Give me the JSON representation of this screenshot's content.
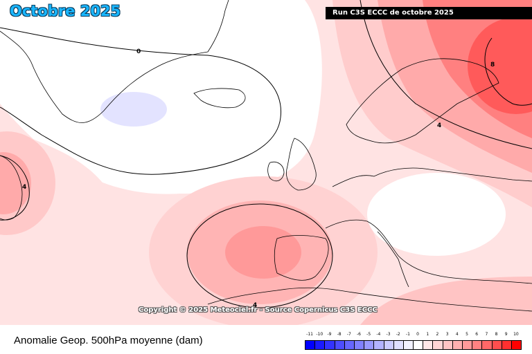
{
  "header": {
    "title": "Octobre 2025",
    "run_label": "Run C3S ECCC de octobre 2025"
  },
  "map": {
    "copyright": "Copyright © 2025 Meteociel.fr - Source Copernicus C3S ECCC",
    "contour_labels": [
      "0",
      "4",
      "8",
      "4",
      "4"
    ]
  },
  "footer": {
    "title": "Anomalie Geop. 500hPa moyenne (dam)"
  },
  "legend": {
    "labels": [
      "-11",
      "-10",
      "-9",
      "-8",
      "-7",
      "-6",
      "-5",
      "-4",
      "-3",
      "-2",
      "-1",
      "0",
      "1",
      "2",
      "3",
      "4",
      "5",
      "6",
      "7",
      "8",
      "9",
      "10"
    ],
    "colors": [
      "#0000ff",
      "#1a1aff",
      "#3333ff",
      "#4d4dff",
      "#6666ff",
      "#8080ff",
      "#9999ff",
      "#b3b3ff",
      "#ccccff",
      "#e0e0ff",
      "#f2f2ff",
      "#ffffff",
      "#ffe8e8",
      "#ffd6d6",
      "#ffc4c4",
      "#ffb0b0",
      "#ff9a9a",
      "#ff8282",
      "#ff6868",
      "#ff4e4e",
      "#ff3030",
      "#ff0000"
    ]
  }
}
